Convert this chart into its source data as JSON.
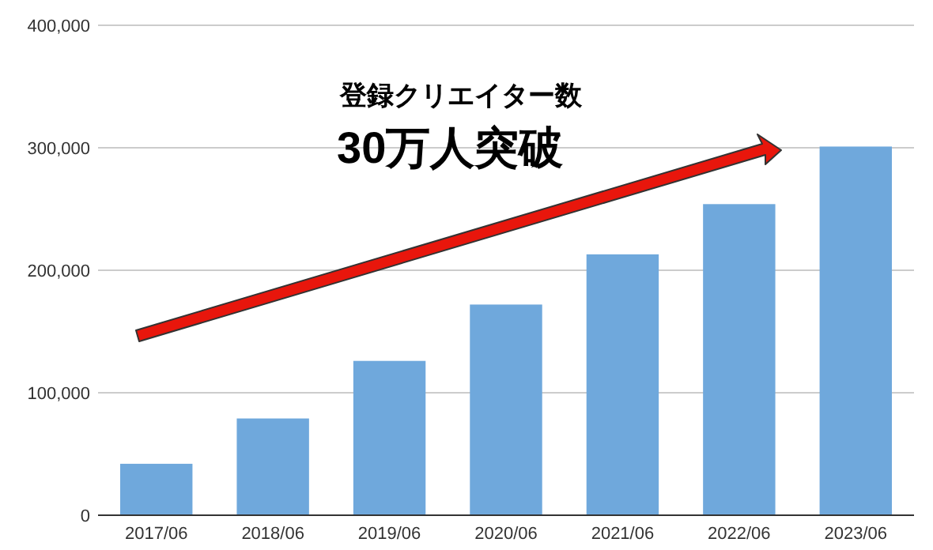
{
  "chart_data": {
    "type": "bar",
    "title": "登録クリエイター数",
    "subtitle": "30万人突破",
    "categories": [
      "2017/06",
      "2018/06",
      "2019/06",
      "2020/06",
      "2021/06",
      "2022/06",
      "2023/06"
    ],
    "values": [
      42000,
      79000,
      126000,
      172000,
      213000,
      254000,
      301000
    ],
    "color": "#6fa8dc",
    "ylim": [
      0,
      400000
    ],
    "yticks": [
      {
        "value": 0,
        "label": "0"
      },
      {
        "value": 100000,
        "label": "100,000"
      },
      {
        "value": 200000,
        "label": "200,000"
      },
      {
        "value": 300000,
        "label": "300,000"
      },
      {
        "value": 400000,
        "label": "400,000"
      }
    ],
    "grid": true
  }
}
